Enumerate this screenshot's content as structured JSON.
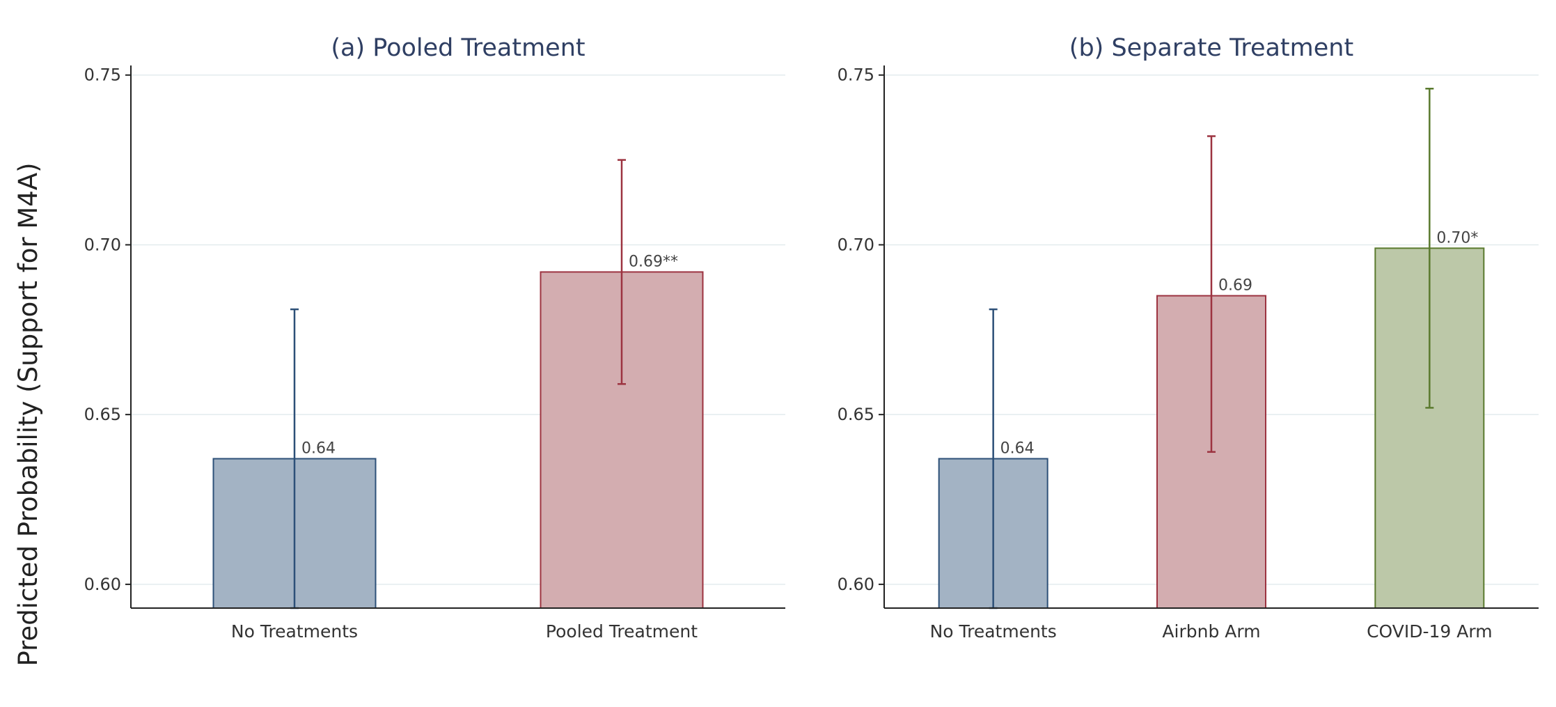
{
  "figure": {
    "ylabel": "Predicted Probability (Support for M4A)"
  },
  "chart_data": [
    {
      "type": "bar",
      "title": "(a) Pooled Treatment",
      "ylabel": "Predicted Probability (Support for M4A)",
      "ylim": [
        0.593,
        0.752
      ],
      "yticks": [
        0.6,
        0.65,
        0.7,
        0.75
      ],
      "ytick_labels": [
        "0.60",
        "0.65",
        "0.70",
        "0.75"
      ],
      "grid": true,
      "categories": [
        "No Treatments",
        "Pooled Treatment"
      ],
      "values": [
        0.637,
        0.692
      ],
      "error_low": [
        0.593,
        0.659
      ],
      "error_high": [
        0.681,
        0.725
      ],
      "data_labels": [
        "0.64",
        "0.69**"
      ],
      "colors": {
        "fill": [
          "#a3b3c4",
          "#d3adb0"
        ],
        "stroke": [
          "#2d5078",
          "#9c3340"
        ]
      }
    },
    {
      "type": "bar",
      "title": "(b) Separate Treatment",
      "ylim": [
        0.593,
        0.752
      ],
      "yticks": [
        0.6,
        0.65,
        0.7,
        0.75
      ],
      "ytick_labels": [
        "0.60",
        "0.65",
        "0.70",
        "0.75"
      ],
      "grid": true,
      "categories": [
        "No Treatments",
        "Airbnb Arm",
        "COVID-19 Arm"
      ],
      "values": [
        0.637,
        0.685,
        0.699
      ],
      "error_low": [
        0.593,
        0.639,
        0.652
      ],
      "error_high": [
        0.681,
        0.732,
        0.746
      ],
      "data_labels": [
        "0.64",
        "0.69",
        "0.70*"
      ],
      "colors": {
        "fill": [
          "#a3b3c4",
          "#d3adb0",
          "#bcc8a8"
        ],
        "stroke": [
          "#2d5078",
          "#9c3340",
          "#5a7a2e"
        ]
      }
    }
  ]
}
